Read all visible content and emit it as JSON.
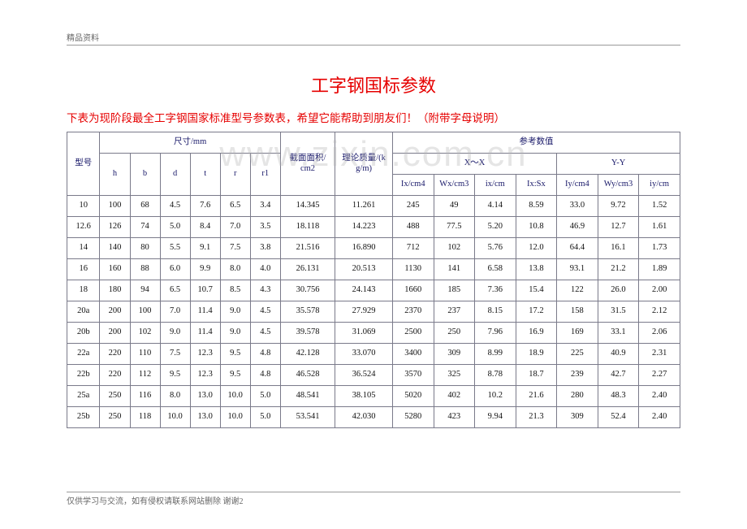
{
  "header_text": "精品资料",
  "footer_text": "仅供学习与交流，如有侵权请联系网站删除 谢谢2",
  "watermark": "www.zixin.com.cn",
  "title": "工字钢国标参数",
  "subtitle": "下表为现阶段最全工字钢国家标准型号参数表，希望它能帮助到朋友们！（附带字母说明）",
  "table": {
    "header": {
      "model": "型号",
      "dim_group": "尺寸/mm",
      "area_l1": "截面面积/",
      "area_l2": "cm2",
      "mass_l1": "理论质量/(k",
      "mass_l2": "g/m)",
      "ref_group": "参考数值",
      "xx": "X～X",
      "yy": "Y-Y",
      "h": "h",
      "b": "b",
      "d": "d",
      "t": "t",
      "r": "r",
      "r1": "r1",
      "ix": "Ix/cm4",
      "wx": "Wx/cm3",
      "icx": "ix/cm",
      "ixsx": "Ix:Sx",
      "iy": "Iy/cm4",
      "wy": "Wy/cm3",
      "icy": "iy/cm"
    },
    "rows": [
      {
        "m": "10",
        "h": "100",
        "b": "68",
        "d": "4.5",
        "t": "7.6",
        "r": "6.5",
        "r1": "3.4",
        "area": "14.345",
        "mass": "11.261",
        "ix": "245",
        "wx": "49",
        "icx": "4.14",
        "ixsx": "8.59",
        "iy": "33.0",
        "wy": "9.72",
        "icy": "1.52"
      },
      {
        "m": "12.6",
        "h": "126",
        "b": "74",
        "d": "5.0",
        "t": "8.4",
        "r": "7.0",
        "r1": "3.5",
        "area": "18.118",
        "mass": "14.223",
        "ix": "488",
        "wx": "77.5",
        "icx": "5.20",
        "ixsx": "10.8",
        "iy": "46.9",
        "wy": "12.7",
        "icy": "1.61"
      },
      {
        "m": "14",
        "h": "140",
        "b": "80",
        "d": "5.5",
        "t": "9.1",
        "r": "7.5",
        "r1": "3.8",
        "area": "21.516",
        "mass": "16.890",
        "ix": "712",
        "wx": "102",
        "icx": "5.76",
        "ixsx": "12.0",
        "iy": "64.4",
        "wy": "16.1",
        "icy": "1.73"
      },
      {
        "m": "16",
        "h": "160",
        "b": "88",
        "d": "6.0",
        "t": "9.9",
        "r": "8.0",
        "r1": "4.0",
        "area": "26.131",
        "mass": "20.513",
        "ix": "1130",
        "wx": "141",
        "icx": "6.58",
        "ixsx": "13.8",
        "iy": "93.1",
        "wy": "21.2",
        "icy": "1.89"
      },
      {
        "m": "18",
        "h": "180",
        "b": "94",
        "d": "6.5",
        "t": "10.7",
        "r": "8.5",
        "r1": "4.3",
        "area": "30.756",
        "mass": "24.143",
        "ix": "1660",
        "wx": "185",
        "icx": "7.36",
        "ixsx": "15.4",
        "iy": "122",
        "wy": "26.0",
        "icy": "2.00"
      },
      {
        "m": "20a",
        "h": "200",
        "b": "100",
        "d": "7.0",
        "t": "11.4",
        "r": "9.0",
        "r1": "4.5",
        "area": "35.578",
        "mass": "27.929",
        "ix": "2370",
        "wx": "237",
        "icx": "8.15",
        "ixsx": "17.2",
        "iy": "158",
        "wy": "31.5",
        "icy": "2.12"
      },
      {
        "m": "20b",
        "h": "200",
        "b": "102",
        "d": "9.0",
        "t": "11.4",
        "r": "9.0",
        "r1": "4.5",
        "area": "39.578",
        "mass": "31.069",
        "ix": "2500",
        "wx": "250",
        "icx": "7.96",
        "ixsx": "16.9",
        "iy": "169",
        "wy": "33.1",
        "icy": "2.06"
      },
      {
        "m": "22a",
        "h": "220",
        "b": "110",
        "d": "7.5",
        "t": "12.3",
        "r": "9.5",
        "r1": "4.8",
        "area": "42.128",
        "mass": "33.070",
        "ix": "3400",
        "wx": "309",
        "icx": "8.99",
        "ixsx": "18.9",
        "iy": "225",
        "wy": "40.9",
        "icy": "2.31"
      },
      {
        "m": "22b",
        "h": "220",
        "b": "112",
        "d": "9.5",
        "t": "12.3",
        "r": "9.5",
        "r1": "4.8",
        "area": "46.528",
        "mass": "36.524",
        "ix": "3570",
        "wx": "325",
        "icx": "8.78",
        "ixsx": "18.7",
        "iy": "239",
        "wy": "42.7",
        "icy": "2.27"
      },
      {
        "m": "25a",
        "h": "250",
        "b": "116",
        "d": "8.0",
        "t": "13.0",
        "r": "10.0",
        "r1": "5.0",
        "area": "48.541",
        "mass": "38.105",
        "ix": "5020",
        "wx": "402",
        "icx": "10.2",
        "ixsx": "21.6",
        "iy": "280",
        "wy": "48.3",
        "icy": "2.40"
      },
      {
        "m": "25b",
        "h": "250",
        "b": "118",
        "d": "10.0",
        "t": "13.0",
        "r": "10.0",
        "r1": "5.0",
        "area": "53.541",
        "mass": "42.030",
        "ix": "5280",
        "wx": "423",
        "icx": "9.94",
        "ixsx": "21.3",
        "iy": "309",
        "wy": "52.4",
        "icy": "2.40"
      }
    ]
  }
}
